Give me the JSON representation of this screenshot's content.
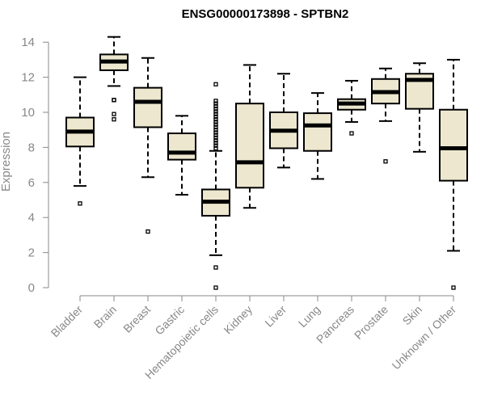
{
  "chart_data": {
    "type": "boxplot",
    "title": "ENSG00000173898 - SPTBN2",
    "xlabel": "",
    "ylabel": "Expression",
    "ylim": [
      0,
      14
    ],
    "yticks": [
      0,
      2,
      4,
      6,
      8,
      10,
      12,
      14
    ],
    "categories": [
      "Bladder",
      "Brain",
      "Breast",
      "Gastric",
      "Hematopoietic cells",
      "Kidney",
      "Liver",
      "Lung",
      "Pancreas",
      "Prostate",
      "Skin",
      "Unknown / Other"
    ],
    "boxes": [
      {
        "category": "Bladder",
        "min": 5.8,
        "q1": 8.05,
        "median": 8.9,
        "q3": 9.7,
        "max": 12.0,
        "outliers": [
          4.8
        ]
      },
      {
        "category": "Brain",
        "min": 11.5,
        "q1": 12.4,
        "median": 12.9,
        "q3": 13.3,
        "max": 14.3,
        "outliers": [
          10.7,
          10.7,
          9.9,
          9.6
        ]
      },
      {
        "category": "Breast",
        "min": 6.3,
        "q1": 9.15,
        "median": 10.6,
        "q3": 11.4,
        "max": 13.1,
        "outliers": [
          3.2
        ]
      },
      {
        "category": "Gastric",
        "min": 5.3,
        "q1": 7.3,
        "median": 7.7,
        "q3": 8.8,
        "max": 9.8,
        "outliers": []
      },
      {
        "category": "Hematopoietic cells",
        "min": 1.85,
        "q1": 4.1,
        "median": 4.9,
        "q3": 5.6,
        "max": 7.8,
        "outliers": [
          0.0,
          1.15,
          7.95,
          8.1,
          8.25,
          8.4,
          8.55,
          8.7,
          8.85,
          9.0,
          9.15,
          9.3,
          9.45,
          9.6,
          9.75,
          9.9,
          10.05,
          10.2,
          10.35,
          10.5,
          10.65,
          11.6
        ]
      },
      {
        "category": "Kidney",
        "min": 4.55,
        "q1": 5.7,
        "median": 7.15,
        "q3": 10.5,
        "max": 12.7,
        "outliers": []
      },
      {
        "category": "Liver",
        "min": 6.85,
        "q1": 7.95,
        "median": 8.95,
        "q3": 10.0,
        "max": 12.2,
        "outliers": []
      },
      {
        "category": "Lung",
        "min": 6.2,
        "q1": 7.8,
        "median": 9.25,
        "q3": 9.95,
        "max": 11.1,
        "outliers": []
      },
      {
        "category": "Pancreas",
        "min": 9.45,
        "q1": 10.15,
        "median": 10.5,
        "q3": 10.75,
        "max": 11.8,
        "outliers": [
          8.8
        ]
      },
      {
        "category": "Prostate",
        "min": 9.5,
        "q1": 10.5,
        "median": 11.15,
        "q3": 11.9,
        "max": 12.5,
        "outliers": [
          7.2
        ]
      },
      {
        "category": "Skin",
        "min": 7.75,
        "q1": 10.2,
        "median": 11.85,
        "q3": 12.2,
        "max": 12.8,
        "outliers": []
      },
      {
        "category": "Unknown / Other",
        "min": 2.1,
        "q1": 6.1,
        "median": 7.95,
        "q3": 10.15,
        "max": 13.0,
        "outliers": [
          0.0
        ]
      }
    ],
    "box_color": "#ede7cf",
    "grid": false,
    "legend": "none"
  }
}
